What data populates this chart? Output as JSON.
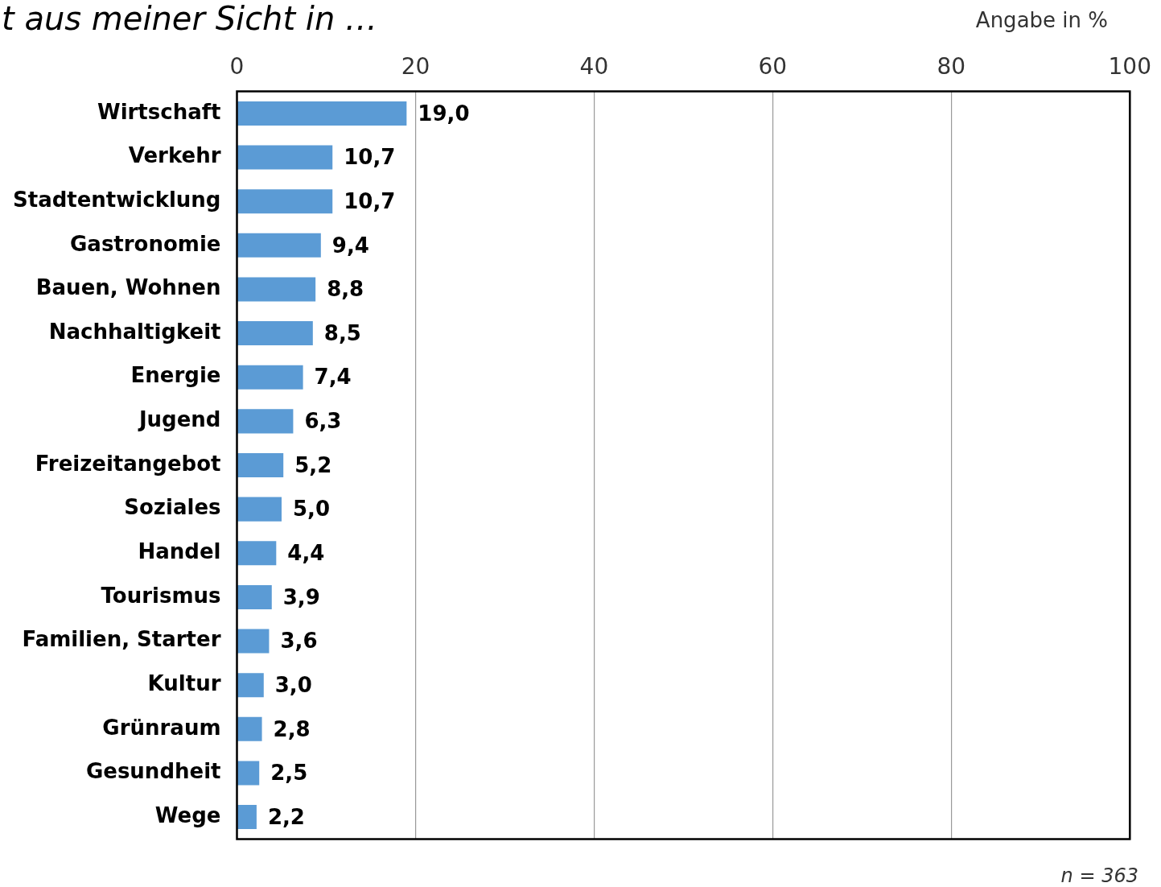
{
  "chart_data": {
    "type": "bar",
    "orientation": "horizontal",
    "title": "t aus meiner Sicht in …",
    "categories": [
      "Wirtschaft",
      "Verkehr",
      "Stadtentwicklung",
      "Gastronomie",
      "Bauen, Wohnen",
      "Nachhaltigkeit",
      "Energie",
      "Jugend",
      "Freizeitangebot",
      "Soziales",
      "Handel",
      "Tourismus",
      "Familien, Starter",
      "Kultur",
      "Grünraum",
      "Gesundheit",
      "Wege"
    ],
    "values": [
      19.0,
      10.7,
      10.7,
      9.4,
      8.8,
      8.5,
      7.4,
      6.3,
      5.2,
      5.0,
      4.4,
      3.9,
      3.6,
      3.0,
      2.8,
      2.5,
      2.2
    ],
    "value_labels": [
      "19,0",
      "10,7",
      "10,7",
      "9,4",
      "8,8",
      "8,5",
      "7,4",
      "6,3",
      "5,2",
      "5,0",
      "4,4",
      "3,9",
      "3,6",
      "3,0",
      "2,8",
      "2,5",
      "2,2"
    ],
    "color": "#5b9bd5",
    "xlim": [
      0,
      100
    ],
    "xticks": [
      0,
      20,
      40,
      60,
      80,
      100
    ],
    "grid": "x",
    "legend": false,
    "annotations": [
      "Angabe in %",
      "n = 363"
    ]
  }
}
